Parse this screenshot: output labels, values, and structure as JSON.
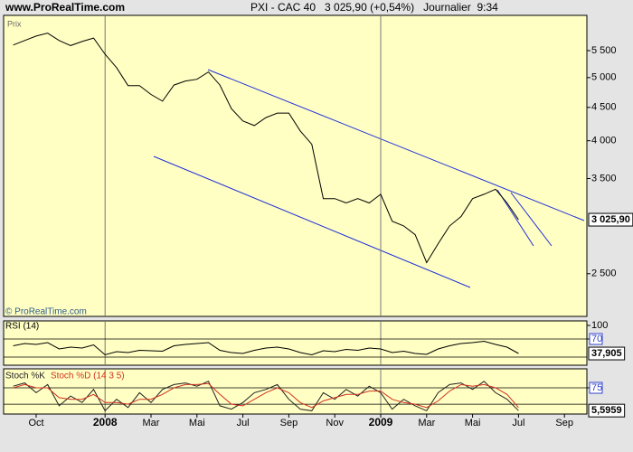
{
  "header": {
    "site": "www.ProRealTime.com",
    "title": "PXI - CAC 40   3 025,90 (+0,54%)   Journalier  9:34"
  },
  "chart_data": [
    {
      "type": "line",
      "y_label": "Prix",
      "copyright": "© ProRealTime.com",
      "log_scale": true,
      "categories": [
        null,
        null,
        "Oct",
        null,
        null,
        null,
        null,
        null,
        "2008",
        null,
        null,
        null,
        "Mar",
        null,
        null,
        null,
        "Mai",
        null,
        null,
        null,
        "Jul",
        null,
        null,
        null,
        "Sep",
        null,
        null,
        null,
        "Nov",
        null,
        null,
        null,
        "2009",
        null,
        null,
        null,
        "Mar",
        null,
        null,
        null,
        "Mai",
        null,
        null,
        null,
        "Jul",
        null,
        null,
        null,
        "Sep",
        null
      ],
      "series": [
        {
          "name": "CAC 40",
          "color": "#000000",
          "values": [
            5610,
            5700,
            5790,
            5850,
            5700,
            5600,
            5680,
            5750,
            5430,
            5180,
            4860,
            4860,
            4710,
            4600,
            4870,
            4940,
            4970,
            5100,
            4870,
            4480,
            4290,
            4220,
            4340,
            4410,
            4410,
            4140,
            3950,
            3260,
            3260,
            3210,
            3260,
            3210,
            3310,
            3010,
            2960,
            2870,
            2600,
            2780,
            2960,
            3060,
            3260,
            3310,
            3370,
            3210,
            3025.9,
            null,
            null,
            null,
            null,
            null
          ]
        }
      ],
      "ylim": [
        2150,
        6230
      ],
      "yticks": [
        {
          "value": 5500,
          "label": "5 500"
        },
        {
          "value": 5000,
          "label": "5 000"
        },
        {
          "value": 4500,
          "label": "4 500"
        },
        {
          "value": 4000,
          "label": "4 000"
        },
        {
          "value": 3500,
          "label": "3 500"
        },
        {
          "value": 2500,
          "label": "2 500"
        }
      ],
      "last": {
        "value": 3025.9,
        "label": "3 025,90"
      }
    },
    {
      "type": "line",
      "title": "RSI (14)",
      "series": [
        {
          "name": "RSI",
          "color": "#000000",
          "values": [
            55,
            60,
            58,
            62,
            48,
            52,
            50,
            57,
            35,
            42,
            40,
            45,
            44,
            43,
            55,
            58,
            60,
            62,
            45,
            40,
            38,
            45,
            50,
            52,
            48,
            40,
            35,
            44,
            42,
            47,
            45,
            50,
            48,
            40,
            43,
            38,
            36,
            48,
            55,
            60,
            62,
            65,
            58,
            52,
            37.905,
            null,
            null,
            null,
            null,
            null
          ]
        }
      ],
      "ylim": [
        12,
        110
      ],
      "yticks": [
        100,
        70
      ],
      "reference_levels": [
        30,
        70
      ],
      "last": {
        "value": 37.905,
        "label": "37,905"
      }
    },
    {
      "type": "line",
      "series": [
        {
          "name": "Stoch %K",
          "color": "#222222",
          "values": [
            80,
            90,
            60,
            85,
            20,
            50,
            30,
            70,
            5,
            40,
            15,
            60,
            30,
            70,
            85,
            90,
            80,
            95,
            20,
            10,
            30,
            60,
            70,
            85,
            40,
            10,
            5,
            60,
            40,
            70,
            50,
            80,
            60,
            10,
            40,
            20,
            5,
            60,
            85,
            90,
            70,
            95,
            60,
            40,
            5.5959,
            null,
            null,
            null,
            null,
            null
          ]
        },
        {
          "name": "Stoch %D (14 3 5)",
          "color": "#d03020",
          "values": [
            75,
            85,
            75,
            75,
            45,
            40,
            40,
            55,
            30,
            30,
            25,
            40,
            40,
            55,
            75,
            85,
            85,
            88,
            55,
            25,
            20,
            40,
            60,
            75,
            60,
            30,
            15,
            35,
            45,
            55,
            55,
            65,
            65,
            40,
            30,
            25,
            15,
            35,
            65,
            85,
            80,
            85,
            75,
            55,
            15,
            null,
            null,
            null,
            null,
            null
          ]
        }
      ],
      "ylim": [
        -5,
        133
      ],
      "yticks": [
        75
      ],
      "reference_levels": [
        25,
        75
      ],
      "last": {
        "value": 5.5959,
        "label": "5,5959"
      }
    }
  ]
}
